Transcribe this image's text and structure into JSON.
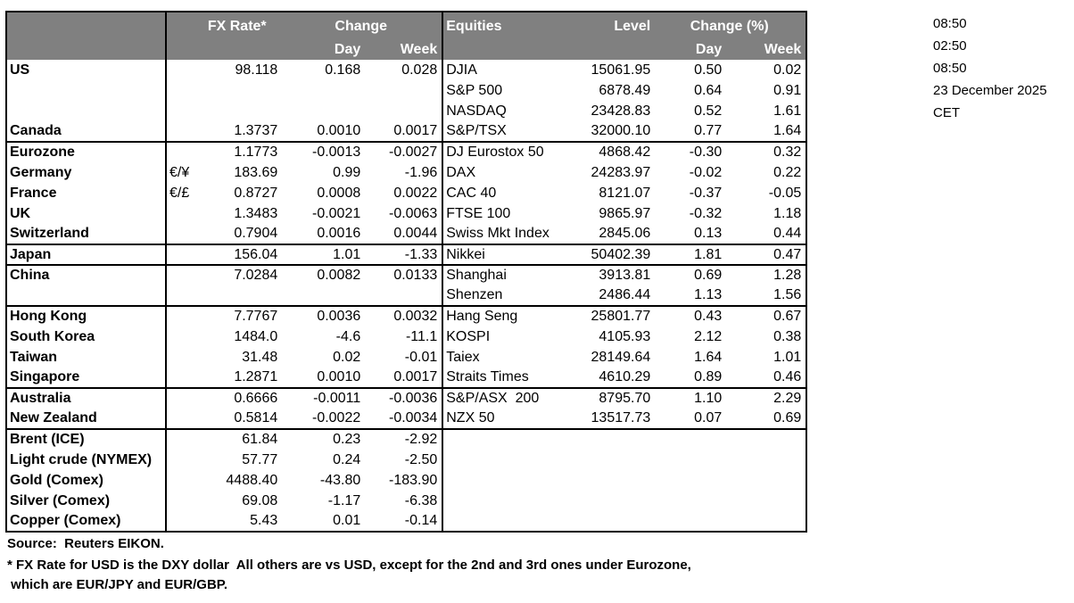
{
  "header": {
    "fx_rate": "FX Rate*",
    "change": "Change",
    "day": "Day",
    "week": "Week",
    "equities": "Equities",
    "level": "Level",
    "change_pct": "Change (%)"
  },
  "rows": [
    {
      "label": "US",
      "sym": "",
      "fx": "98.118",
      "day": "0.168",
      "week": "0.028",
      "eq": "DJIA",
      "level": "15061.95",
      "eqday": "0.50",
      "eqweek": "0.02"
    },
    {
      "label": "",
      "sym": "",
      "fx": "",
      "day": "",
      "week": "",
      "eq": "S&P 500",
      "level": "6878.49",
      "eqday": "0.64",
      "eqweek": "0.91"
    },
    {
      "label": "",
      "sym": "",
      "fx": "",
      "day": "",
      "week": "",
      "eq": "NASDAQ",
      "level": "23428.83",
      "eqday": "0.52",
      "eqweek": "1.61"
    },
    {
      "label": "Canada",
      "sym": "",
      "fx": "1.3737",
      "day": "0.0010",
      "week": "0.0017",
      "eq": "S&P/TSX",
      "level": "32000.10",
      "eqday": "0.77",
      "eqweek": "1.64"
    },
    {
      "label": "Eurozone",
      "sym": "",
      "fx": "1.1773",
      "day": "-0.0013",
      "week": "-0.0027",
      "eq": "DJ Eurostox 50",
      "level": "4868.42",
      "eqday": "-0.30",
      "eqweek": "0.32",
      "sep": true
    },
    {
      "label": "Germany",
      "sym": "€/¥",
      "fx": "183.69",
      "day": "0.99",
      "week": "-1.96",
      "eq": "DAX",
      "level": "24283.97",
      "eqday": "-0.02",
      "eqweek": "0.22",
      "ind": true
    },
    {
      "label": "France",
      "sym": "€/£",
      "fx": "0.8727",
      "day": "0.0008",
      "week": "0.0022",
      "eq": "CAC 40",
      "level": "8121.07",
      "eqday": "-0.37",
      "eqweek": "-0.05",
      "ind": true
    },
    {
      "label": "UK",
      "sym": "",
      "fx": "1.3483",
      "day": "-0.0021",
      "week": "-0.0063",
      "eq": "FTSE 100",
      "level": "9865.97",
      "eqday": "-0.32",
      "eqweek": "1.18"
    },
    {
      "label": "Switzerland",
      "sym": "",
      "fx": "0.7904",
      "day": "0.0016",
      "week": "0.0044",
      "eq": "Swiss Mkt Index",
      "level": "2845.06",
      "eqday": "0.13",
      "eqweek": "0.44"
    },
    {
      "label": "Japan",
      "sym": "",
      "fx": "156.04",
      "day": "1.01",
      "week": "-1.33",
      "eq": "Nikkei",
      "level": "50402.39",
      "eqday": "1.81",
      "eqweek": "0.47",
      "sep": true
    },
    {
      "label": "China",
      "sym": "",
      "fx": "7.0284",
      "day": "0.0082",
      "week": "0.0133",
      "eq": "Shanghai",
      "level": "3913.81",
      "eqday": "0.69",
      "eqweek": "1.28",
      "sep": true
    },
    {
      "label": "",
      "sym": "",
      "fx": "",
      "day": "",
      "week": "",
      "eq": "Shenzen",
      "level": "2486.44",
      "eqday": "1.13",
      "eqweek": "1.56"
    },
    {
      "label": "Hong Kong",
      "sym": "",
      "fx": "7.7767",
      "day": "0.0036",
      "week": "0.0032",
      "eq": "Hang Seng",
      "level": "25801.77",
      "eqday": "0.43",
      "eqweek": "0.67",
      "sep": true
    },
    {
      "label": "South Korea",
      "sym": "",
      "fx": "1484.0",
      "day": "-4.6",
      "week": "-11.1",
      "eq": "KOSPI",
      "level": "4105.93",
      "eqday": "2.12",
      "eqweek": "0.38"
    },
    {
      "label": "Taiwan",
      "sym": "",
      "fx": "31.48",
      "day": "0.02",
      "week": "-0.01",
      "eq": "Taiex",
      "level": "28149.64",
      "eqday": "1.64",
      "eqweek": "1.01"
    },
    {
      "label": "Singapore",
      "sym": "",
      "fx": "1.2871",
      "day": "0.0010",
      "week": "0.0017",
      "eq": "Straits Times",
      "level": "4610.29",
      "eqday": "0.89",
      "eqweek": "0.46"
    },
    {
      "label": "Australia",
      "sym": "",
      "fx": "0.6666",
      "day": "-0.0011",
      "week": "-0.0036",
      "eq": "S&P/ASX  200",
      "level": "8795.70",
      "eqday": "1.10",
      "eqweek": "2.29",
      "sep": true
    },
    {
      "label": "New Zealand",
      "sym": "",
      "fx": "0.5814",
      "day": "-0.0022",
      "week": "-0.0034",
      "eq": "NZX 50",
      "level": "13517.73",
      "eqday": "0.07",
      "eqweek": "0.69"
    },
    {
      "label": "Brent (ICE)",
      "sym": "",
      "fx": "61.84",
      "day": "0.23",
      "week": "-2.92",
      "eq": "",
      "level": "",
      "eqday": "",
      "eqweek": "",
      "sep": true
    },
    {
      "label": "Light crude (NYMEX)",
      "sym": "",
      "fx": "57.77",
      "day": "0.24",
      "week": "-2.50",
      "eq": "",
      "level": "",
      "eqday": "",
      "eqweek": ""
    },
    {
      "label": "Gold (Comex)",
      "sym": "",
      "fx": "4488.40",
      "day": "-43.80",
      "week": "-183.90",
      "eq": "",
      "level": "",
      "eqday": "",
      "eqweek": ""
    },
    {
      "label": "Silver (Comex)",
      "sym": "",
      "fx": "69.08",
      "day": "-1.17",
      "week": "-6.38",
      "eq": "",
      "level": "",
      "eqday": "",
      "eqweek": ""
    },
    {
      "label": "Copper (Comex)",
      "sym": "",
      "fx": "5.43",
      "day": "0.01",
      "week": "-0.14",
      "eq": "",
      "level": "",
      "eqday": "",
      "eqweek": ""
    }
  ],
  "timestamps": [
    "08:50",
    "02:50",
    "08:50",
    "23 December 2025",
    "CET"
  ],
  "footer": {
    "source": "Source:  Reuters EIKON.",
    "note1": "* FX Rate for USD is the DXY dollar  All others are vs USD, except for the 2nd and 3rd ones under Eurozone,",
    "note2": " which are EUR/JPY and EUR/GBP."
  },
  "colors": {
    "header_bg": "#808080",
    "header_text": "#FFFFFF",
    "border": "#000000",
    "text": "#000000"
  }
}
